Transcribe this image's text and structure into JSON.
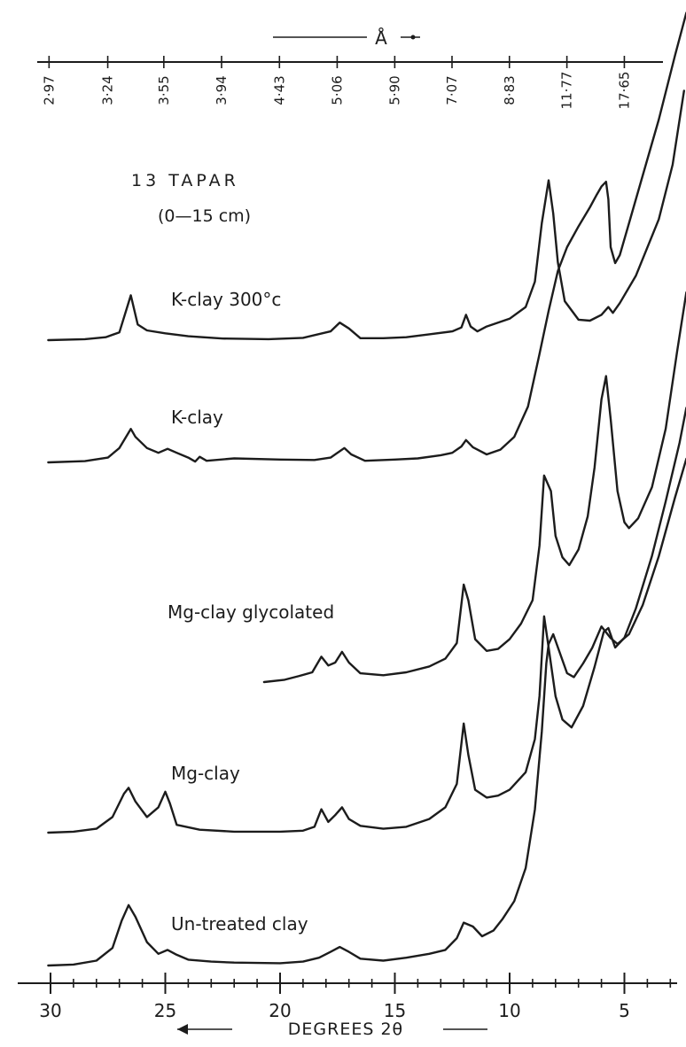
{
  "chart_data": {
    "type": "line",
    "title": "13 TAPAR",
    "subtitle": "(0—15 cm)",
    "xlabel": "DEGREES 2θ",
    "x_reversed": true,
    "xlim": [
      30.1,
      2.2
    ],
    "x_ticks": [
      30,
      25,
      20,
      15,
      10,
      5
    ],
    "top_axis_label": "Å",
    "top_ticks": [
      "2·97",
      "3·24",
      "3·55",
      "3·94",
      "4·43",
      "5·06",
      "5·90",
      "7·07",
      "8·83",
      "11·77",
      "17·65"
    ],
    "y_units": "relative intensity (offset, arbitrary)",
    "series": [
      {
        "name": "K-clay 300°c",
        "points": [
          [
            30.1,
            0.0
          ],
          [
            28.5,
            0.05
          ],
          [
            27.6,
            0.15
          ],
          [
            27.0,
            0.4
          ],
          [
            26.5,
            2.3
          ],
          [
            26.2,
            0.8
          ],
          [
            25.8,
            0.5
          ],
          [
            25.0,
            0.35
          ],
          [
            24.0,
            0.2
          ],
          [
            22.5,
            0.08
          ],
          [
            20.5,
            0.05
          ],
          [
            19.0,
            0.12
          ],
          [
            17.8,
            0.45
          ],
          [
            17.4,
            0.9
          ],
          [
            17.0,
            0.6
          ],
          [
            16.5,
            0.1
          ],
          [
            15.5,
            0.1
          ],
          [
            14.5,
            0.15
          ],
          [
            13.5,
            0.3
          ],
          [
            12.5,
            0.45
          ],
          [
            12.1,
            0.65
          ],
          [
            11.9,
            1.3
          ],
          [
            11.7,
            0.7
          ],
          [
            11.4,
            0.45
          ],
          [
            11.0,
            0.7
          ],
          [
            10.0,
            1.1
          ],
          [
            9.3,
            1.7
          ],
          [
            8.9,
            3.0
          ],
          [
            8.6,
            6.0
          ],
          [
            8.3,
            8.2
          ],
          [
            8.1,
            6.5
          ],
          [
            7.9,
            4.0
          ],
          [
            7.6,
            2.0
          ],
          [
            7.0,
            1.05
          ],
          [
            6.5,
            1.0
          ],
          [
            6.0,
            1.3
          ],
          [
            5.7,
            1.7
          ],
          [
            5.5,
            1.4
          ],
          [
            5.2,
            1.9
          ],
          [
            4.5,
            3.3
          ],
          [
            3.5,
            6.2
          ],
          [
            2.9,
            9.0
          ],
          [
            2.4,
            12.8
          ]
        ]
      },
      {
        "name": "K-clay",
        "points": [
          [
            30.1,
            0.0
          ],
          [
            28.5,
            0.08
          ],
          [
            27.5,
            0.3
          ],
          [
            27.0,
            0.9
          ],
          [
            26.5,
            2.1
          ],
          [
            26.3,
            1.6
          ],
          [
            25.8,
            0.9
          ],
          [
            25.3,
            0.6
          ],
          [
            24.9,
            0.85
          ],
          [
            24.5,
            0.6
          ],
          [
            24.0,
            0.3
          ],
          [
            23.7,
            0.05
          ],
          [
            23.5,
            0.35
          ],
          [
            23.2,
            0.1
          ],
          [
            22.0,
            0.25
          ],
          [
            20.0,
            0.18
          ],
          [
            18.5,
            0.15
          ],
          [
            17.8,
            0.3
          ],
          [
            17.2,
            0.9
          ],
          [
            16.9,
            0.5
          ],
          [
            16.3,
            0.1
          ],
          [
            15.0,
            0.18
          ],
          [
            14.0,
            0.25
          ],
          [
            13.0,
            0.45
          ],
          [
            12.5,
            0.6
          ],
          [
            12.1,
            1.0
          ],
          [
            11.9,
            1.4
          ],
          [
            11.6,
            0.95
          ],
          [
            11.0,
            0.5
          ],
          [
            10.4,
            0.8
          ],
          [
            9.8,
            1.6
          ],
          [
            9.2,
            3.5
          ],
          [
            8.7,
            6.8
          ],
          [
            8.3,
            9.5
          ],
          [
            7.9,
            12.0
          ],
          [
            7.5,
            13.5
          ],
          [
            7.0,
            14.8
          ],
          [
            6.5,
            16.0
          ],
          [
            6.2,
            16.8
          ],
          [
            6.0,
            17.3
          ],
          [
            5.8,
            17.6
          ],
          [
            5.7,
            16.5
          ],
          [
            5.6,
            13.5
          ],
          [
            5.4,
            12.5
          ],
          [
            5.2,
            13.0
          ],
          [
            4.8,
            15.0
          ],
          [
            4.2,
            18.0
          ],
          [
            3.5,
            21.5
          ],
          [
            2.8,
            25.5
          ],
          [
            2.3,
            28.2
          ]
        ]
      },
      {
        "name": "Mg-clay glycolated",
        "points": [
          [
            20.7,
            0.0
          ],
          [
            19.8,
            0.12
          ],
          [
            19.2,
            0.3
          ],
          [
            18.6,
            0.5
          ],
          [
            18.2,
            1.3
          ],
          [
            17.9,
            0.85
          ],
          [
            17.6,
            1.0
          ],
          [
            17.3,
            1.55
          ],
          [
            17.0,
            1.0
          ],
          [
            16.5,
            0.45
          ],
          [
            15.5,
            0.35
          ],
          [
            14.5,
            0.5
          ],
          [
            13.5,
            0.8
          ],
          [
            12.8,
            1.2
          ],
          [
            12.3,
            2.0
          ],
          [
            12.0,
            5.0
          ],
          [
            11.8,
            4.2
          ],
          [
            11.5,
            2.2
          ],
          [
            11.0,
            1.6
          ],
          [
            10.5,
            1.7
          ],
          [
            10.0,
            2.2
          ],
          [
            9.5,
            3.0
          ],
          [
            9.0,
            4.2
          ],
          [
            8.7,
            7.0
          ],
          [
            8.5,
            10.6
          ],
          [
            8.2,
            9.8
          ],
          [
            8.0,
            7.5
          ],
          [
            7.7,
            6.4
          ],
          [
            7.4,
            6.0
          ],
          [
            7.0,
            6.8
          ],
          [
            6.6,
            8.5
          ],
          [
            6.3,
            11.0
          ],
          [
            6.0,
            14.5
          ],
          [
            5.8,
            15.7
          ],
          [
            5.6,
            13.5
          ],
          [
            5.3,
            9.8
          ],
          [
            5.0,
            8.2
          ],
          [
            4.8,
            7.9
          ],
          [
            4.4,
            8.4
          ],
          [
            3.8,
            10.0
          ],
          [
            3.2,
            13.0
          ],
          [
            2.7,
            17.0
          ],
          [
            2.3,
            20.0
          ]
        ]
      },
      {
        "name": "Mg-clay",
        "points": [
          [
            30.1,
            0.0
          ],
          [
            29.0,
            0.05
          ],
          [
            28.0,
            0.2
          ],
          [
            27.3,
            0.8
          ],
          [
            26.8,
            2.0
          ],
          [
            26.6,
            2.3
          ],
          [
            26.3,
            1.6
          ],
          [
            25.8,
            0.8
          ],
          [
            25.3,
            1.3
          ],
          [
            25.0,
            2.1
          ],
          [
            24.8,
            1.5
          ],
          [
            24.5,
            0.4
          ],
          [
            23.5,
            0.15
          ],
          [
            22.0,
            0.05
          ],
          [
            20.0,
            0.05
          ],
          [
            19.0,
            0.1
          ],
          [
            18.5,
            0.3
          ],
          [
            18.2,
            1.2
          ],
          [
            17.9,
            0.55
          ],
          [
            17.6,
            0.9
          ],
          [
            17.3,
            1.3
          ],
          [
            17.0,
            0.7
          ],
          [
            16.5,
            0.35
          ],
          [
            15.5,
            0.2
          ],
          [
            14.5,
            0.3
          ],
          [
            13.5,
            0.7
          ],
          [
            12.8,
            1.3
          ],
          [
            12.3,
            2.5
          ],
          [
            12.0,
            5.6
          ],
          [
            11.8,
            4.0
          ],
          [
            11.5,
            2.2
          ],
          [
            11.0,
            1.8
          ],
          [
            10.5,
            1.9
          ],
          [
            10.0,
            2.2
          ],
          [
            9.3,
            3.1
          ],
          [
            8.9,
            4.8
          ],
          [
            8.7,
            7.0
          ],
          [
            8.5,
            11.1
          ],
          [
            8.3,
            9.5
          ],
          [
            8.0,
            7.0
          ],
          [
            7.7,
            5.8
          ],
          [
            7.3,
            5.4
          ],
          [
            6.8,
            6.5
          ],
          [
            6.3,
            8.5
          ],
          [
            5.9,
            10.3
          ],
          [
            5.7,
            10.5
          ],
          [
            5.4,
            9.5
          ],
          [
            5.0,
            10.0
          ],
          [
            4.5,
            11.5
          ],
          [
            3.8,
            14.2
          ],
          [
            3.2,
            17.0
          ],
          [
            2.6,
            20.0
          ],
          [
            2.3,
            21.8
          ]
        ]
      },
      {
        "name": "Un-treated clay",
        "points": [
          [
            30.1,
            0.0
          ],
          [
            29.0,
            0.05
          ],
          [
            28.0,
            0.25
          ],
          [
            27.3,
            0.9
          ],
          [
            26.9,
            2.3
          ],
          [
            26.6,
            3.1
          ],
          [
            26.3,
            2.5
          ],
          [
            25.8,
            1.2
          ],
          [
            25.3,
            0.6
          ],
          [
            24.9,
            0.8
          ],
          [
            24.5,
            0.55
          ],
          [
            24.0,
            0.3
          ],
          [
            23.0,
            0.2
          ],
          [
            22.0,
            0.15
          ],
          [
            20.0,
            0.12
          ],
          [
            19.0,
            0.2
          ],
          [
            18.3,
            0.4
          ],
          [
            17.8,
            0.7
          ],
          [
            17.4,
            0.95
          ],
          [
            17.0,
            0.7
          ],
          [
            16.5,
            0.35
          ],
          [
            15.5,
            0.25
          ],
          [
            14.5,
            0.4
          ],
          [
            13.5,
            0.6
          ],
          [
            12.8,
            0.8
          ],
          [
            12.3,
            1.4
          ],
          [
            12.0,
            2.2
          ],
          [
            11.6,
            2.0
          ],
          [
            11.2,
            1.5
          ],
          [
            10.7,
            1.8
          ],
          [
            10.3,
            2.4
          ],
          [
            9.8,
            3.3
          ],
          [
            9.3,
            5.0
          ],
          [
            8.9,
            8.0
          ],
          [
            8.6,
            12.0
          ],
          [
            8.4,
            15.5
          ],
          [
            8.3,
            16.5
          ],
          [
            8.1,
            17.0
          ],
          [
            7.8,
            16.0
          ],
          [
            7.5,
            15.0
          ],
          [
            7.2,
            14.8
          ],
          [
            6.8,
            15.5
          ],
          [
            6.4,
            16.3
          ],
          [
            6.0,
            17.4
          ],
          [
            5.6,
            16.8
          ],
          [
            5.3,
            16.5
          ],
          [
            4.8,
            17.0
          ],
          [
            4.2,
            18.5
          ],
          [
            3.5,
            21.0
          ],
          [
            2.8,
            24.0
          ],
          [
            2.3,
            26.0
          ]
        ]
      }
    ]
  }
}
